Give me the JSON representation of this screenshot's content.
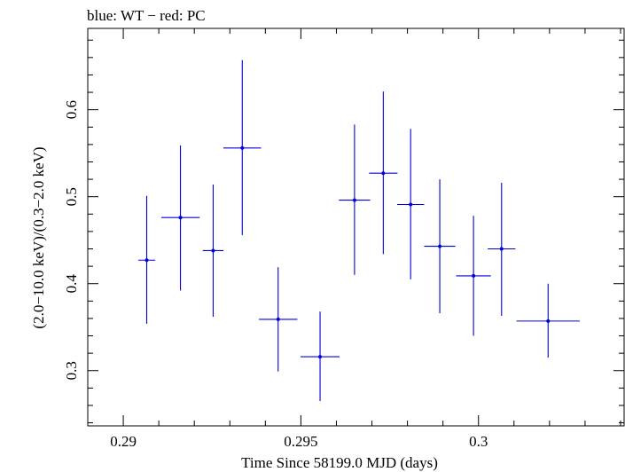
{
  "chart_data": {
    "type": "scatter",
    "title": "blue: WT − red: PC",
    "xlabel": "Time Since 58199.0 MJD (days)",
    "ylabel": "(2.0−10.0 keV)/(0.3−2.0 keV)",
    "xlim": [
      0.289,
      0.3041
    ],
    "ylim": [
      0.2365,
      0.6935
    ],
    "x_ticks": [
      0.29,
      0.295,
      0.3
    ],
    "x_tick_labels": [
      "0.29",
      "0.295",
      "0.3"
    ],
    "y_ticks": [
      0.3,
      0.4,
      0.5,
      0.6
    ],
    "y_tick_labels": [
      "0.3",
      "0.4",
      "0.5",
      "0.6"
    ],
    "grid": false,
    "series": [
      {
        "color": "#0000dd",
        "points": [
          {
            "x": 0.29066,
            "y": 0.427,
            "xerr": 0.00024,
            "ylo": 0.354,
            "yhi": 0.501
          },
          {
            "x": 0.29161,
            "y": 0.476,
            "xerr": 0.00054,
            "ylo": 0.392,
            "yhi": 0.559
          },
          {
            "x": 0.29253,
            "y": 0.438,
            "xerr": 0.00029,
            "ylo": 0.362,
            "yhi": 0.514
          },
          {
            "x": 0.29335,
            "y": 0.556,
            "xerr": 0.00053,
            "ylo": 0.456,
            "yhi": 0.657
          },
          {
            "x": 0.29436,
            "y": 0.359,
            "xerr": 0.00054,
            "ylo": 0.299,
            "yhi": 0.419
          },
          {
            "x": 0.29554,
            "y": 0.316,
            "xerr": 0.00055,
            "ylo": 0.265,
            "yhi": 0.368
          },
          {
            "x": 0.29651,
            "y": 0.496,
            "xerr": 0.00044,
            "ylo": 0.41,
            "yhi": 0.583
          },
          {
            "x": 0.29732,
            "y": 0.527,
            "xerr": 0.0004,
            "ylo": 0.434,
            "yhi": 0.621
          },
          {
            "x": 0.29809,
            "y": 0.491,
            "xerr": 0.00038,
            "ylo": 0.405,
            "yhi": 0.578
          },
          {
            "x": 0.29891,
            "y": 0.443,
            "xerr": 0.00044,
            "ylo": 0.366,
            "yhi": 0.52
          },
          {
            "x": 0.29986,
            "y": 0.409,
            "xerr": 0.00049,
            "ylo": 0.34,
            "yhi": 0.478
          },
          {
            "x": 0.30065,
            "y": 0.44,
            "xerr": 0.00039,
            "ylo": 0.363,
            "yhi": 0.516
          },
          {
            "x": 0.30196,
            "y": 0.357,
            "xerr": 0.00089,
            "ylo": 0.315,
            "yhi": 0.4
          }
        ]
      }
    ]
  }
}
